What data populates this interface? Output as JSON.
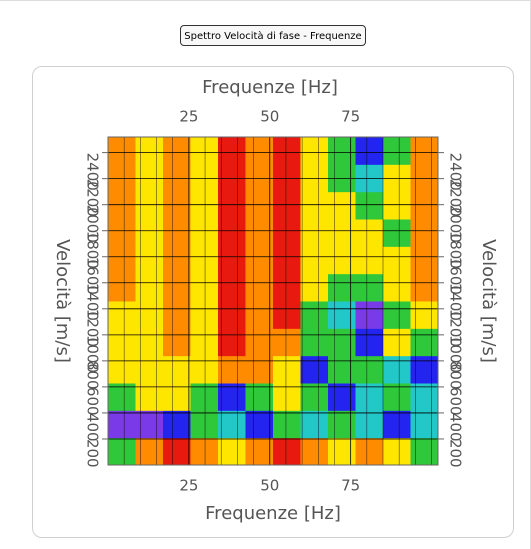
{
  "window_button": "Spettro Velocità di fase - Frequenze",
  "chart_data": {
    "type": "heatmap",
    "x_label": "Frequenze [Hz]",
    "y_label": "Velocità [m/s]",
    "xlim": [
      0,
      102
    ],
    "ylim": [
      0,
      2520
    ],
    "xticks": [
      25,
      50,
      75
    ],
    "x_minor_ticks": [
      5,
      10,
      15,
      20,
      30,
      35,
      40,
      45,
      55,
      60,
      65,
      70,
      80,
      85,
      90,
      95,
      100
    ],
    "yticks": [
      200,
      400,
      600,
      800,
      1000,
      1200,
      1400,
      1600,
      1800,
      2000,
      2200,
      2400
    ],
    "grid": true,
    "colorscale": [
      "#e81a10",
      "#ff8c00",
      "#ffe600",
      "#2ec83a",
      "#22c8c8",
      "#2424f0",
      "#7b3ae8"
    ],
    "x_edges": [
      0,
      8.5,
      17,
      25.5,
      34,
      42.5,
      51,
      59.5,
      68,
      76.5,
      85,
      93.5,
      102
    ],
    "y_edges": [
      0,
      210,
      420,
      630,
      840,
      1050,
      1260,
      1470,
      1680,
      1890,
      2100,
      2310,
      2520
    ],
    "z": [
      [
        3,
        1,
        0,
        1,
        2,
        1,
        0,
        1,
        2,
        1,
        2,
        3
      ],
      [
        6,
        6,
        5,
        3,
        4,
        5,
        3,
        4,
        3,
        4,
        5,
        4
      ],
      [
        3,
        2,
        2,
        3,
        5,
        3,
        2,
        3,
        5,
        4,
        3,
        4
      ],
      [
        2,
        2,
        2,
        2,
        1,
        1,
        2,
        5,
        3,
        3,
        4,
        5
      ],
      [
        2,
        2,
        1,
        2,
        0,
        1,
        1,
        3,
        3,
        5,
        2,
        3
      ],
      [
        2,
        2,
        1,
        2,
        0,
        1,
        0,
        3,
        4,
        6,
        3,
        2
      ],
      [
        1,
        2,
        1,
        2,
        0,
        1,
        0,
        2,
        3,
        3,
        2,
        1
      ],
      [
        1,
        2,
        1,
        2,
        0,
        1,
        0,
        2,
        2,
        2,
        2,
        1
      ],
      [
        1,
        2,
        1,
        2,
        0,
        1,
        0,
        2,
        2,
        2,
        3,
        1
      ],
      [
        1,
        2,
        1,
        2,
        0,
        1,
        0,
        2,
        2,
        3,
        2,
        1
      ],
      [
        1,
        2,
        1,
        2,
        0,
        1,
        0,
        2,
        3,
        4,
        2,
        1
      ],
      [
        1,
        2,
        1,
        2,
        0,
        1,
        0,
        2,
        3,
        5,
        3,
        1
      ]
    ]
  }
}
